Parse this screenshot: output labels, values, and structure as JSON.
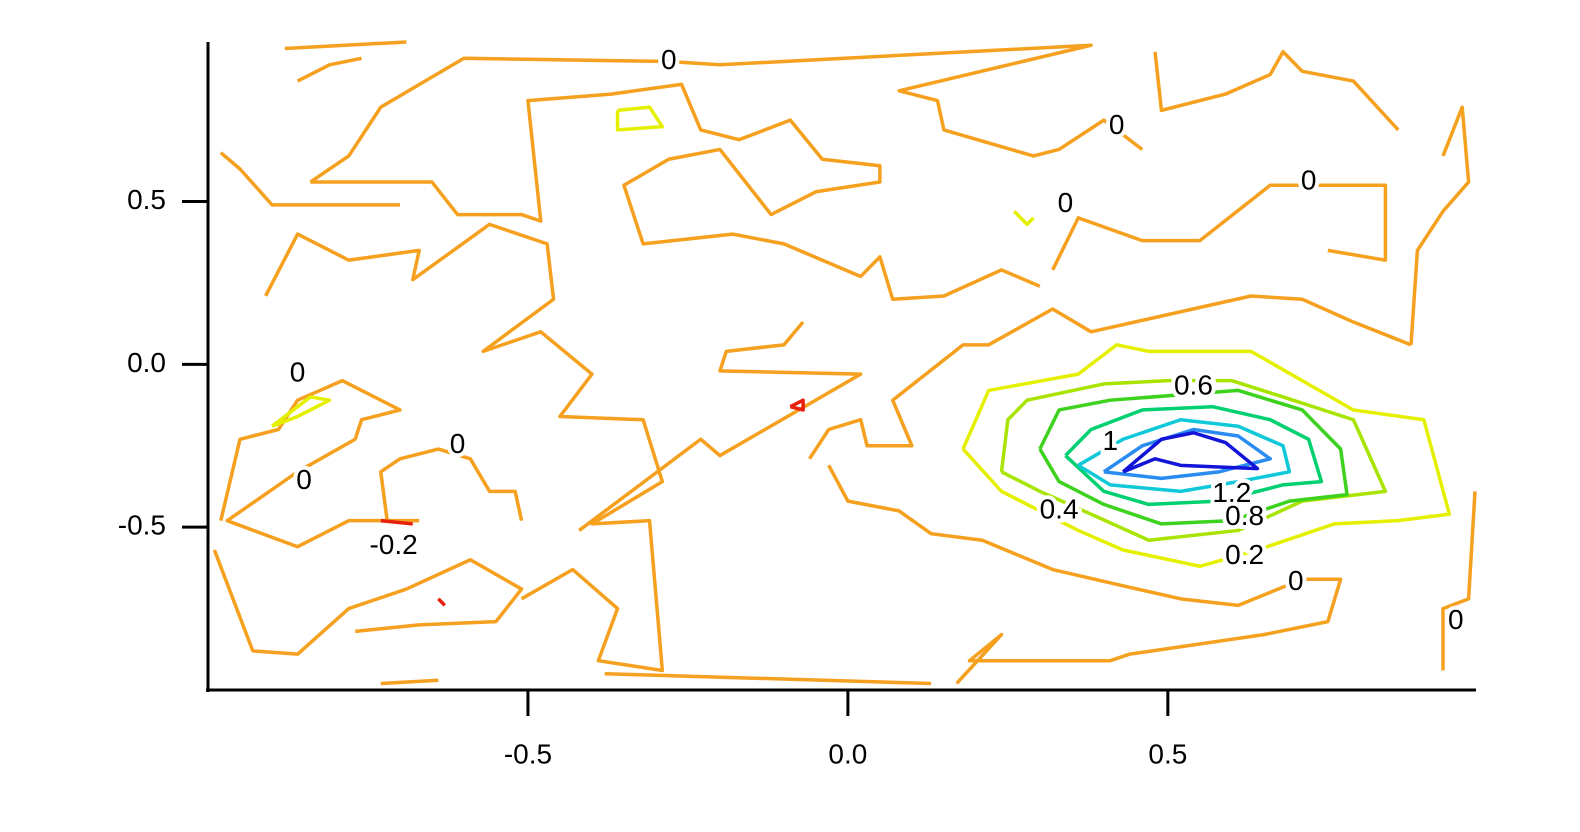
{
  "chart_data": {
    "type": "contour",
    "xlim": [
      -1,
      0.98
    ],
    "ylim": [
      -1,
      0.99
    ],
    "xticks": [
      -0.5,
      {
        "value": 0,
        "label": "0.0"
      },
      0.5
    ],
    "yticks": [
      -0.5,
      {
        "value": 0,
        "label": "0.0"
      },
      0.5
    ],
    "contours": [
      {
        "color": "#f5a01e",
        "paths": [
          {
            "x": [
              -0.88,
              -0.69
            ],
            "y": [
              0.97,
              0.99
            ]
          },
          {
            "x": [
              -0.86,
              -0.81,
              -0.76
            ],
            "y": [
              0.87,
              0.92,
              0.94
            ]
          },
          {
            "x": [
              -0.84,
              -0.78,
              -0.73,
              -0.6,
              -0.28,
              -0.2,
              0.38,
              0.08,
              0.14,
              0.15,
              0.29,
              0.33,
              0.4,
              0.46
            ],
            "y": [
              0.56,
              0.64,
              0.79,
              0.94,
              0.93,
              0.92,
              0.98,
              0.84,
              0.81,
              0.72,
              0.64,
              0.66,
              0.75,
              0.66
            ]
          },
          {
            "x": [
              -0.84,
              -0.65,
              -0.61,
              -0.51,
              -0.48,
              -0.5,
              -0.37,
              -0.26,
              -0.23,
              -0.17,
              -0.09,
              -0.04,
              0.05,
              0.05,
              -0.05,
              -0.12,
              -0.2,
              -0.28,
              -0.35,
              -0.32,
              -0.18,
              -0.1,
              0.02,
              0.05,
              0.07,
              0.15,
              0.24,
              0.3
            ],
            "y": [
              0.56,
              0.56,
              0.46,
              0.46,
              0.44,
              0.81,
              0.83,
              0.86,
              0.72,
              0.69,
              0.75,
              0.63,
              0.61,
              0.56,
              0.53,
              0.46,
              0.66,
              0.63,
              0.55,
              0.37,
              0.4,
              0.37,
              0.27,
              0.33,
              0.2,
              0.21,
              0.29,
              0.24
            ]
          },
          {
            "x": [
              -0.98,
              -0.95,
              -0.9,
              -0.78,
              -0.7
            ],
            "y": [
              0.65,
              0.6,
              0.49,
              0.49,
              0.49
            ]
          },
          {
            "x": [
              -0.91,
              -0.86,
              -0.78,
              -0.67,
              -0.68,
              -0.56,
              -0.47,
              -0.46,
              -0.57,
              -0.48,
              -0.4,
              -0.45,
              -0.32,
              -0.29,
              -0.4,
              -0.31,
              -0.29,
              -0.39,
              -0.36,
              -0.43,
              -0.51
            ],
            "y": [
              0.21,
              0.4,
              0.32,
              0.35,
              0.26,
              0.43,
              0.37,
              0.2,
              0.04,
              0.1,
              -0.03,
              -0.16,
              -0.17,
              -0.36,
              -0.49,
              -0.48,
              -0.94,
              -0.91,
              -0.75,
              -0.63,
              -0.72
            ]
          },
          {
            "x": [
              -0.98,
              -0.95,
              -0.89,
              -0.86,
              -0.79,
              -0.7,
              -0.76,
              -0.77,
              -0.86,
              -0.97,
              -0.86,
              -0.78,
              -0.67
            ],
            "y": [
              -0.48,
              -0.23,
              -0.2,
              -0.11,
              -0.05,
              -0.14,
              -0.17,
              -0.23,
              -0.33,
              -0.48,
              -0.56,
              -0.48,
              -0.48
            ]
          },
          {
            "x": [
              -0.72,
              -0.73,
              -0.7,
              -0.64,
              -0.59,
              -0.56,
              -0.52,
              -0.51
            ],
            "y": [
              -0.48,
              -0.33,
              -0.29,
              -0.26,
              -0.29,
              -0.39,
              -0.39,
              -0.48
            ]
          },
          {
            "x": [
              -0.99,
              -0.93,
              -0.86,
              -0.78,
              -0.69,
              -0.59,
              -0.51,
              -0.55,
              -0.67,
              -0.77
            ],
            "y": [
              -0.57,
              -0.88,
              -0.89,
              -0.75,
              -0.69,
              -0.6,
              -0.69,
              -0.79,
              -0.8,
              -0.82
            ]
          },
          {
            "x": [
              -0.38,
              0.13
            ],
            "y": [
              -0.95,
              -0.98
            ]
          },
          {
            "x": [
              -0.73,
              -0.64
            ],
            "y": [
              -0.98,
              -0.97
            ]
          },
          {
            "x": [
              -0.42,
              -0.23,
              -0.2,
              0.02,
              -0.2,
              -0.19,
              -0.1,
              -0.07
            ],
            "y": [
              -0.51,
              -0.23,
              -0.28,
              -0.03,
              -0.02,
              0.04,
              0.06,
              0.13
            ]
          },
          {
            "x": [
              -0.06,
              -0.03,
              0.02,
              0.03,
              0.1,
              0.07,
              0.18,
              0.22,
              0.32,
              0.38,
              0.63,
              0.71,
              0.79,
              0.88
            ],
            "y": [
              -0.29,
              -0.2,
              -0.17,
              -0.25,
              -0.25,
              -0.11,
              0.06,
              0.06,
              0.17,
              0.1,
              0.21,
              0.2,
              0.13,
              0.06
            ]
          },
          {
            "x": [
              -0.03,
              0.0,
              0.08,
              0.13,
              0.21,
              0.32,
              0.43,
              0.52,
              0.61,
              0.71,
              0.77,
              0.75,
              0.65,
              0.44,
              0.41,
              0.19,
              0.24,
              0.17
            ],
            "y": [
              -0.31,
              -0.42,
              -0.45,
              -0.52,
              -0.54,
              -0.63,
              -0.68,
              -0.72,
              -0.74,
              -0.66,
              -0.66,
              -0.79,
              -0.83,
              -0.89,
              -0.91,
              -0.91,
              -0.83,
              -0.98
            ]
          },
          {
            "x": [
              0.48,
              0.49,
              0.59,
              0.66,
              0.68,
              0.71,
              0.79,
              0.86
            ],
            "y": [
              0.96,
              0.78,
              0.83,
              0.89,
              0.96,
              0.9,
              0.87,
              0.72
            ]
          },
          {
            "x": [
              0.32,
              0.36,
              0.46,
              0.55,
              0.66,
              0.84,
              0.84,
              0.75
            ],
            "y": [
              0.29,
              0.45,
              0.38,
              0.38,
              0.55,
              0.55,
              0.32,
              0.35
            ]
          },
          {
            "x": [
              0.93,
              0.96,
              0.97,
              0.93,
              0.89,
              0.88
            ],
            "y": [
              0.64,
              0.79,
              0.56,
              0.47,
              0.35,
              0.06
            ]
          },
          {
            "x": [
              0.98,
              0.97,
              0.93,
              0.93
            ],
            "y": [
              -0.39,
              -0.72,
              -0.75,
              -0.94
            ]
          }
        ]
      },
      {
        "color": "#e8200e",
        "paths": [
          {
            "x": [
              -0.73,
              -0.68
            ],
            "y": [
              -0.48,
              -0.49
            ]
          },
          {
            "x": [
              -0.09,
              -0.07,
              -0.07,
              -0.09
            ],
            "y": [
              -0.13,
              -0.11,
              -0.14,
              -0.13
            ]
          },
          {
            "x": [
              -0.64,
              -0.63
            ],
            "y": [
              -0.72,
              -0.74
            ]
          }
        ]
      },
      {
        "color": "#e4f000",
        "paths": [
          {
            "x": [
              -0.36,
              -0.31,
              -0.29,
              -0.36,
              -0.36
            ],
            "y": [
              0.78,
              0.79,
              0.73,
              0.72,
              0.78
            ]
          },
          {
            "x": [
              -0.9,
              -0.84,
              -0.81,
              -0.86,
              -0.9
            ],
            "y": [
              -0.19,
              -0.1,
              -0.11,
              -0.16,
              -0.19
            ]
          },
          {
            "x": [
              0.26,
              0.28,
              0.29
            ],
            "y": [
              0.47,
              0.43,
              0.45
            ]
          },
          {
            "x": [
              0.18,
              0.22,
              0.36,
              0.42,
              0.47,
              0.63,
              0.79,
              0.9,
              0.94,
              0.86,
              0.76,
              0.64,
              0.55,
              0.43,
              0.36,
              0.24,
              0.18
            ],
            "y": [
              -0.26,
              -0.08,
              -0.03,
              0.06,
              0.04,
              0.04,
              -0.14,
              -0.17,
              -0.46,
              -0.48,
              -0.49,
              -0.57,
              -0.62,
              -0.57,
              -0.51,
              -0.39,
              -0.26
            ]
          }
        ]
      },
      {
        "color": "#a8e400",
        "paths": [
          {
            "x": [
              0.24,
              0.25,
              0.28,
              0.4,
              0.5,
              0.6,
              0.68,
              0.79,
              0.84,
              0.71,
              0.61,
              0.47,
              0.38,
              0.3,
              0.24
            ],
            "y": [
              -0.33,
              -0.17,
              -0.11,
              -0.06,
              -0.05,
              -0.05,
              -0.1,
              -0.17,
              -0.39,
              -0.42,
              -0.51,
              -0.54,
              -0.46,
              -0.39,
              -0.33
            ]
          }
        ]
      },
      {
        "color": "#3cd21e",
        "paths": [
          {
            "x": [
              0.3,
              0.33,
              0.41,
              0.61,
              0.71,
              0.77,
              0.78,
              0.69,
              0.6,
              0.49,
              0.4,
              0.33,
              0.3
            ],
            "y": [
              -0.26,
              -0.14,
              -0.11,
              -0.08,
              -0.14,
              -0.26,
              -0.4,
              -0.42,
              -0.48,
              -0.49,
              -0.43,
              -0.36,
              -0.26
            ]
          }
        ]
      },
      {
        "color": "#00d070",
        "paths": [
          {
            "x": [
              0.34,
              0.38,
              0.46,
              0.57,
              0.66,
              0.72,
              0.74,
              0.68,
              0.58,
              0.47,
              0.4,
              0.34
            ],
            "y": [
              -0.28,
              -0.2,
              -0.14,
              -0.13,
              -0.17,
              -0.23,
              -0.36,
              -0.37,
              -0.42,
              -0.43,
              -0.39,
              -0.28
            ]
          }
        ]
      },
      {
        "color": "#10c8d8",
        "paths": [
          {
            "x": [
              0.36,
              0.43,
              0.52,
              0.61,
              0.68,
              0.69,
              0.61,
              0.52,
              0.41,
              0.36
            ],
            "y": [
              -0.31,
              -0.23,
              -0.17,
              -0.19,
              -0.25,
              -0.33,
              -0.36,
              -0.39,
              -0.37,
              -0.31
            ]
          }
        ]
      },
      {
        "color": "#2a8cf0",
        "paths": [
          {
            "x": [
              0.4,
              0.46,
              0.54,
              0.61,
              0.66,
              0.58,
              0.49,
              0.4
            ],
            "y": [
              -0.33,
              -0.25,
              -0.2,
              -0.22,
              -0.29,
              -0.33,
              -0.35,
              -0.33
            ]
          }
        ]
      },
      {
        "color": "#1414d8",
        "paths": [
          {
            "x": [
              0.43,
              0.49,
              0.54,
              0.59,
              0.64,
              0.52,
              0.48,
              0.43
            ],
            "y": [
              -0.33,
              -0.23,
              -0.21,
              -0.24,
              -0.32,
              -0.31,
              -0.29,
              -0.33
            ]
          }
        ]
      }
    ],
    "contour_labels": [
      {
        "value": 0,
        "x": -0.28,
        "y": 0.93
      },
      {
        "value": 0,
        "x": 0.42,
        "y": 0.73
      },
      {
        "value": 0,
        "x": 0.34,
        "y": 0.49
      },
      {
        "value": 0,
        "x": 0.72,
        "y": 0.56
      },
      {
        "value": 0,
        "x": -0.86,
        "y": -0.03
      },
      {
        "value": 0,
        "x": -0.61,
        "y": -0.25
      },
      {
        "value": 0,
        "x": -0.85,
        "y": -0.36
      },
      {
        "value": 0,
        "x": 0.7,
        "y": -0.67
      },
      {
        "value": 0,
        "x": 0.95,
        "y": -0.79
      },
      {
        "value": -0.2,
        "x": -0.71,
        "y": -0.56
      },
      {
        "value": 0.6,
        "x": 0.54,
        "y": -0.07
      },
      {
        "value": 1,
        "x": 0.41,
        "y": -0.24
      },
      {
        "value": 1.2,
        "x": 0.6,
        "y": -0.4
      },
      {
        "value": 0.8,
        "x": 0.62,
        "y": -0.47
      },
      {
        "value": 0.2,
        "x": 0.62,
        "y": -0.59
      },
      {
        "value": 0.4,
        "x": 0.33,
        "y": -0.45
      }
    ]
  }
}
